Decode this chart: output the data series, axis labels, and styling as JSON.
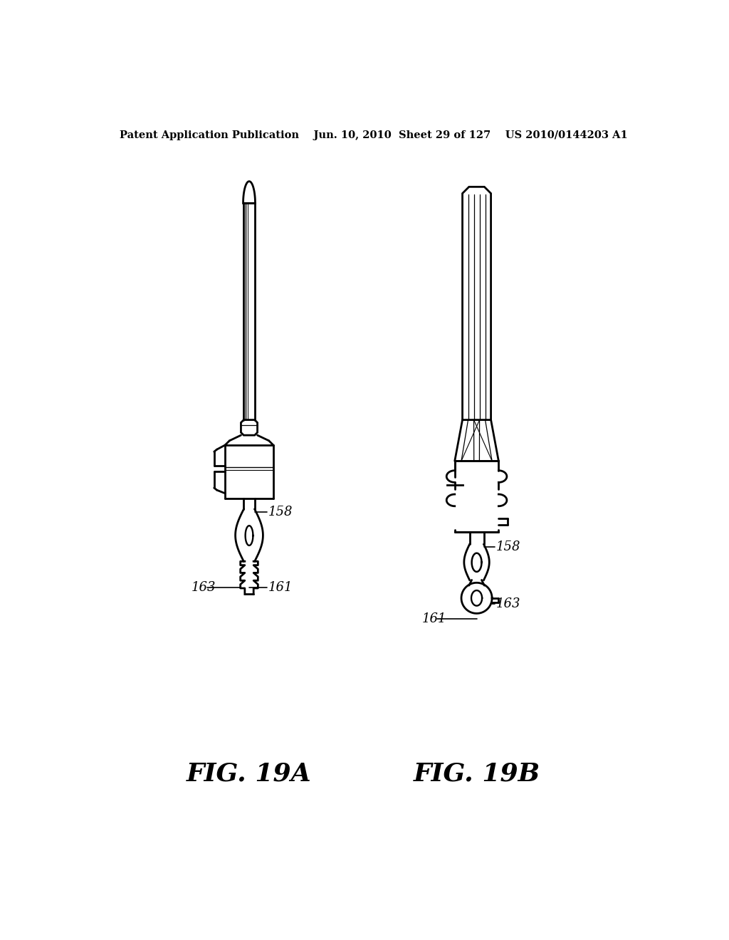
{
  "background_color": "#ffffff",
  "line_color": "#000000",
  "header_text": "Patent Application Publication    Jun. 10, 2010  Sheet 29 of 127    US 2010/0144203 A1",
  "fig19a_label": "FIG. 19A",
  "fig19b_label": "FIG. 19B",
  "ref_158_a": "158",
  "ref_161_a": "161",
  "ref_163_a": "163",
  "ref_158_b": "158",
  "ref_161_b": "161",
  "ref_163_b": "163",
  "header_fontsize": 10.5,
  "fig_label_fontsize": 26,
  "ref_fontsize": 13
}
